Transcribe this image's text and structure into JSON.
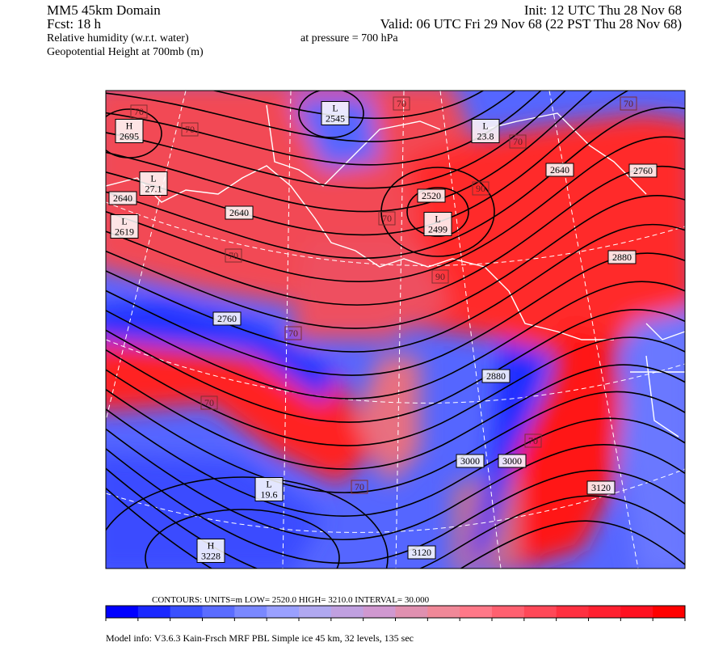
{
  "header": {
    "left": [
      "MM5 45km Domain",
      "Fcst:    18 h",
      "Relative humidity (w.r.t. water)",
      "Geopotential Height at 700mb (m)"
    ],
    "right": [
      "Init: 12 UTC Thu 28 Nov 68",
      "Valid: 06 UTC Fri 29 Nov 68 (22 PST Thu 28 Nov 68)",
      "at pressure =  700 hPa"
    ]
  },
  "map_labels": [
    {
      "lines": [
        "70"
      ]
    },
    {
      "lines": [
        "70"
      ]
    },
    {
      "lines": [
        "70"
      ]
    },
    {
      "lines": [
        "70"
      ]
    },
    {
      "lines": [
        "70"
      ]
    },
    {
      "lines": [
        "70"
      ]
    },
    {
      "lines": [
        "70"
      ]
    },
    {
      "lines": [
        "70"
      ]
    },
    {
      "lines": [
        "70"
      ]
    },
    {
      "lines": [
        "70"
      ]
    },
    {
      "lines": [
        "70"
      ]
    },
    {
      "lines": [
        "90"
      ]
    },
    {
      "lines": [
        "90"
      ]
    },
    {
      "lines": [
        "2640"
      ]
    },
    {
      "lines": [
        "2640"
      ]
    },
    {
      "lines": [
        "2640"
      ]
    },
    {
      "lines": [
        "2760"
      ]
    },
    {
      "lines": [
        "2760"
      ]
    },
    {
      "lines": [
        "2880"
      ]
    },
    {
      "lines": [
        "2880"
      ]
    },
    {
      "lines": [
        "3000"
      ]
    },
    {
      "lines": [
        "3000"
      ]
    },
    {
      "lines": [
        "3120"
      ]
    },
    {
      "lines": [
        "3120"
      ]
    },
    {
      "lines": [
        "2520"
      ]
    },
    {
      "lines": [
        "L",
        "2499"
      ]
    },
    {
      "lines": [
        "L",
        "2545"
      ]
    },
    {
      "lines": [
        "H",
        "2695"
      ]
    },
    {
      "lines": [
        "L",
        "2619"
      ]
    },
    {
      "lines": [
        "L",
        "27.1"
      ]
    },
    {
      "lines": [
        "L",
        "23.8"
      ]
    },
    {
      "lines": [
        "L",
        "19.6"
      ]
    },
    {
      "lines": [
        "H",
        "3228"
      ]
    }
  ],
  "colorbar": {
    "colors": [
      "#0000ff",
      "#1a28ff",
      "#3a50ff",
      "#5a6cff",
      "#7a88ff",
      "#9aa0ff",
      "#b0a8f0",
      "#c0a0e0",
      "#d098d0",
      "#e090b0",
      "#f08898",
      "#ff7888",
      "#ff6070",
      "#ff4858",
      "#ff3040",
      "#ff2030",
      "#ff1020",
      "#ff0000"
    ],
    "info": "CONTOURS:  UNITS=m  LOW=  2520.0    HIGH=  3210.0    INTERVAL=   30.000"
  },
  "footer": "Model info: V3.6.3 Kain-Frsch MRF PBL    Simple ice    45 km,  32 levels,  135 sec"
}
